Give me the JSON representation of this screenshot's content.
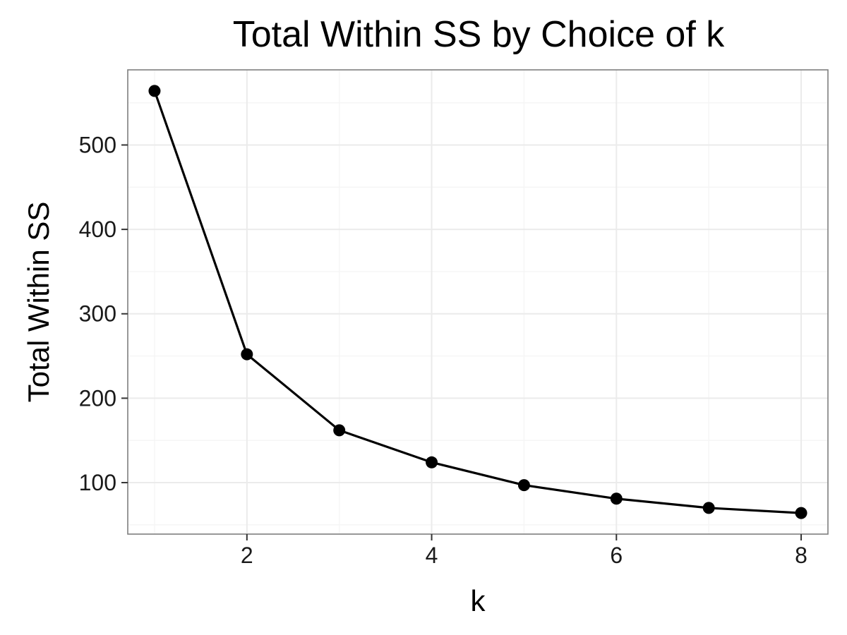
{
  "chart_data": {
    "type": "line",
    "title": "Total Within SS by Choice of k",
    "xlabel": "k",
    "ylabel": "Total Within SS",
    "x": [
      1,
      2,
      3,
      4,
      5,
      6,
      7,
      8
    ],
    "series": [
      {
        "values": [
          564,
          252,
          162,
          124,
          97,
          81,
          70,
          64
        ]
      }
    ],
    "xlim": [
      0.71,
      8.29
    ],
    "ylim": [
      39,
      589
    ],
    "x_ticks": [
      2,
      4,
      6,
      8
    ],
    "y_ticks": [
      100,
      200,
      300,
      400,
      500
    ],
    "x_minor_ticks": [
      1,
      3,
      5,
      7
    ],
    "y_minor_ticks": [
      50,
      150,
      250,
      350,
      450,
      550
    ],
    "grid": true,
    "legend": "none",
    "colors": {
      "line": "#000000",
      "point": "#000000",
      "grid_major": "#ebebeb",
      "grid_minor": "#f5f5f5",
      "panel_border": "#7f7f7f",
      "background": "#ffffff"
    }
  }
}
